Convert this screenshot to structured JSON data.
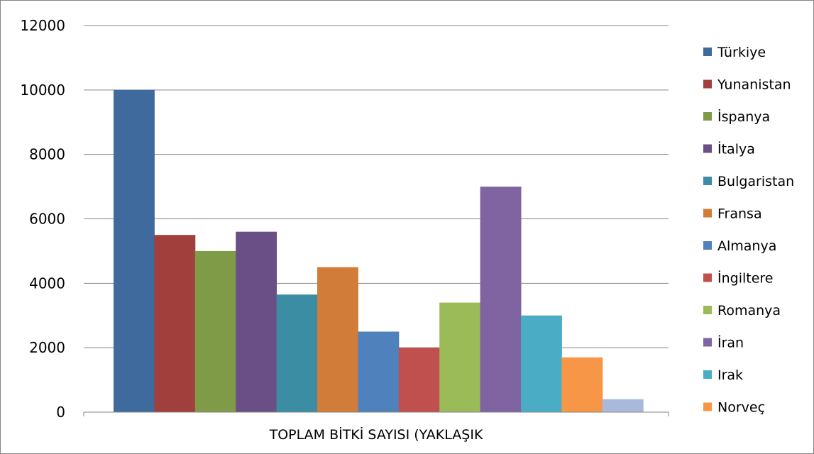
{
  "chart_data": {
    "type": "bar",
    "categories": [
      "TOPLAM BİTKİ SAYISI (YAKLAŞIK"
    ],
    "ylim": [
      0,
      12000
    ],
    "yticks": [
      0,
      2000,
      4000,
      6000,
      8000,
      10000,
      12000
    ],
    "grid": true,
    "legend_position": "right",
    "series": [
      {
        "name": "Türkiye",
        "values": [
          10000
        ],
        "color": "#3e6a9e"
      },
      {
        "name": "Yunanistan",
        "values": [
          5500
        ],
        "color": "#a03f3c"
      },
      {
        "name": "İspanya",
        "values": [
          5000
        ],
        "color": "#7f9b47"
      },
      {
        "name": "İtalya",
        "values": [
          5600
        ],
        "color": "#6a4f86"
      },
      {
        "name": "Bulgaristan",
        "values": [
          3650
        ],
        "color": "#3a8da3"
      },
      {
        "name": "Fransa",
        "values": [
          4500
        ],
        "color": "#d17c38"
      },
      {
        "name": "Almanya",
        "values": [
          2500
        ],
        "color": "#4f81bd"
      },
      {
        "name": "İngiltere",
        "values": [
          2000
        ],
        "color": "#c0504d"
      },
      {
        "name": "Romanya",
        "values": [
          3400
        ],
        "color": "#9bbb59"
      },
      {
        "name": "İran",
        "values": [
          7000
        ],
        "color": "#8064a2"
      },
      {
        "name": "Irak",
        "values": [
          3000
        ],
        "color": "#4bacc6"
      },
      {
        "name": "Norveç",
        "values": [
          1700
        ],
        "color": "#f79646"
      },
      {
        "name": "",
        "values": [
          400
        ],
        "color": "#a9b9dc"
      }
    ]
  }
}
